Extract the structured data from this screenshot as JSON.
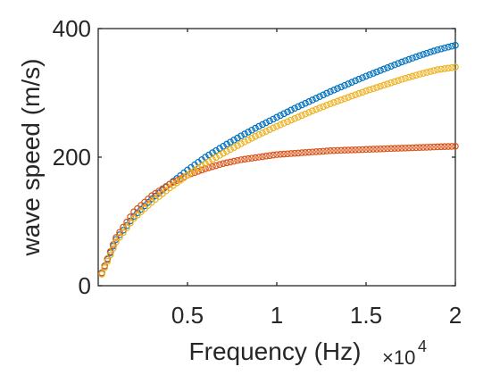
{
  "chart_data": {
    "type": "scatter",
    "xlabel": "Frequency (Hz)",
    "ylabel": "wave speed (m/s)",
    "x_exponent_label": "×10",
    "x_exponent_power": "4",
    "xlim": [
      0,
      20000
    ],
    "ylim": [
      0,
      400
    ],
    "xticks": [
      5000,
      10000,
      15000,
      20000
    ],
    "xtick_labels": [
      "0.5",
      "1",
      "1.5",
      "2"
    ],
    "yticks": [
      0,
      200,
      400
    ],
    "ytick_labels": [
      "0",
      "200",
      "400"
    ],
    "grid": false,
    "marker": "open-circle",
    "series": [
      {
        "color": "#0072BD",
        "x": [
          200,
          1000,
          2000,
          3000,
          4000,
          5000,
          6000,
          7000,
          8000,
          9000,
          10000,
          11000,
          12000,
          13000,
          14000,
          15000,
          16000,
          17000,
          18000,
          19000,
          20000
        ],
        "y": [
          20,
          72,
          108,
          135,
          158,
          180,
          200,
          217,
          233,
          248,
          262,
          276,
          289,
          302,
          314,
          326,
          337,
          348,
          358,
          367,
          374
        ]
      },
      {
        "color": "#D95319",
        "x": [
          200,
          1000,
          2000,
          3000,
          4000,
          5000,
          6000,
          7000,
          8000,
          9000,
          10000,
          11000,
          12000,
          13000,
          14000,
          15000,
          16000,
          17000,
          18000,
          19000,
          20000
        ],
        "y": [
          20,
          75,
          115,
          140,
          158,
          172,
          182,
          190,
          196,
          200,
          204,
          206,
          208,
          210,
          211,
          212,
          213,
          214,
          215,
          216,
          217
        ]
      },
      {
        "color": "#EDB120",
        "x": [
          200,
          1000,
          2000,
          3000,
          4000,
          5000,
          6000,
          7000,
          8000,
          9000,
          10000,
          11000,
          12000,
          13000,
          14000,
          15000,
          16000,
          17000,
          18000,
          19000,
          20000
        ],
        "y": [
          18,
          68,
          105,
          130,
          152,
          172,
          190,
          206,
          221,
          235,
          248,
          260,
          272,
          283,
          293,
          303,
          312,
          321,
          329,
          336,
          340
        ]
      }
    ]
  }
}
